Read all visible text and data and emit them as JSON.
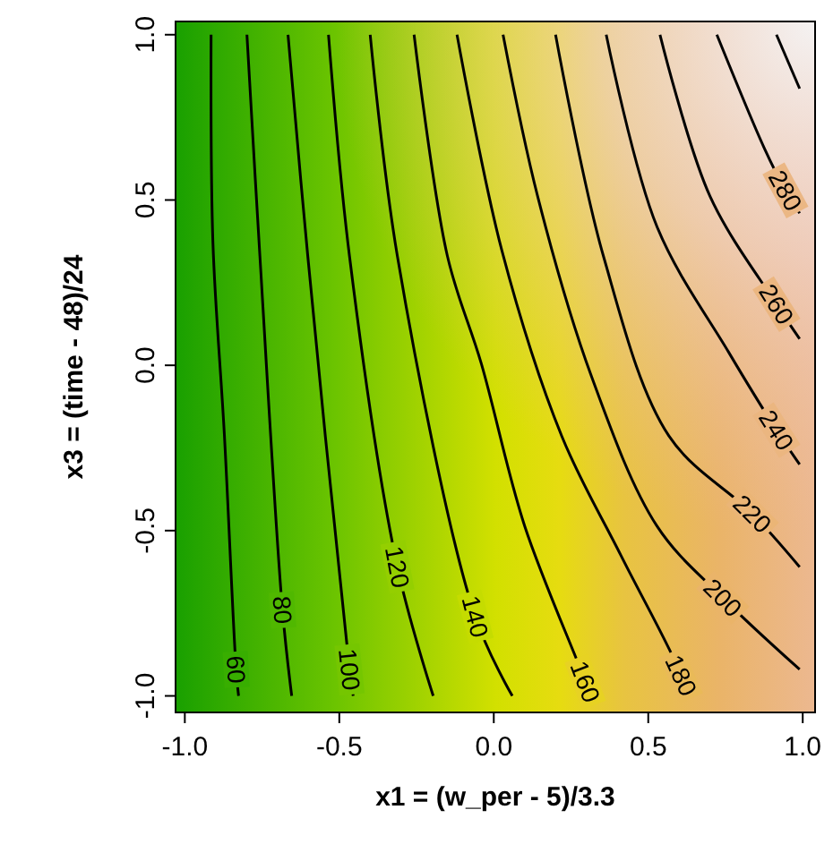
{
  "chart_data": {
    "type": "line",
    "xlabel": "x1 = (w_per - 5)/3.3",
    "ylabel": "x3 = (time - 48)/24",
    "xlim": [
      -1.03,
      1.04
    ],
    "ylim": [
      -1.05,
      1.04
    ],
    "xticks": [
      {
        "value": -1,
        "label": "-1.0"
      },
      {
        "value": -0.5,
        "label": "-0.5"
      },
      {
        "value": 0,
        "label": "0.0"
      },
      {
        "value": 0.5,
        "label": "0.5"
      },
      {
        "value": 1,
        "label": "1.0"
      }
    ],
    "yticks": [
      {
        "value": -1,
        "label": "-1.0"
      },
      {
        "value": -0.5,
        "label": "-0.5"
      },
      {
        "value": 0,
        "label": "0.0"
      },
      {
        "value": 0.5,
        "label": "0.5"
      },
      {
        "value": 1,
        "label": "1.0"
      }
    ],
    "series": [
      {
        "name": "60",
        "color": "#000000",
        "x": [
          -0.915,
          -0.909,
          -0.872,
          -0.834,
          -0.826
        ],
        "values": [
          1,
          0.37,
          -0.21,
          -0.92,
          -1
        ]
      },
      {
        "name": "80",
        "color": "#000000",
        "x": [
          -0.799,
          -0.757,
          -0.684,
          -0.654
        ],
        "values": [
          1,
          0.33,
          -0.74,
          -1
        ]
      },
      {
        "name": "100",
        "color": "#000000",
        "x": [
          -0.666,
          -0.602,
          -0.467,
          -0.455
        ],
        "values": [
          1,
          0.33,
          -0.92,
          -1
        ]
      },
      {
        "name": "120",
        "color": "#000000",
        "x": [
          -0.535,
          -0.467,
          -0.312,
          -0.196
        ],
        "values": [
          1,
          0.33,
          -0.61,
          -1
        ]
      },
      {
        "name": "140",
        "color": "#000000",
        "x": [
          -0.4,
          -0.312,
          -0.06,
          0.06
        ],
        "values": [
          1,
          0.33,
          -0.76,
          -1
        ]
      },
      {
        "name": "160",
        "color": "#000000",
        "x": [
          -0.258,
          -0.15,
          -0.04,
          0.1,
          0.296,
          0.31
        ],
        "values": [
          1,
          0.33,
          0.004,
          -0.486,
          -0.957,
          -1
        ]
      },
      {
        "name": "180",
        "color": "#000000",
        "x": [
          -0.119,
          0.026,
          0.22,
          0.412,
          0.606,
          0.62
        ],
        "values": [
          1,
          0.348,
          -0.214,
          -0.576,
          -0.938,
          -1
        ]
      },
      {
        "name": "200",
        "color": "#000000",
        "x": [
          0.03,
          0.142,
          0.316,
          0.528,
          0.741,
          0.99
        ],
        "values": [
          1,
          0.511,
          -0.033,
          -0.486,
          -0.703,
          -0.92
        ]
      },
      {
        "name": "220",
        "color": "#000000",
        "x": [
          0.2,
          0.355,
          0.567,
          0.837,
          0.99
        ],
        "values": [
          1,
          0.33,
          -0.214,
          -0.449,
          -0.61
        ]
      },
      {
        "name": "240",
        "color": "#000000",
        "x": [
          0.364,
          0.528,
          0.76,
          0.915,
          0.99
        ],
        "values": [
          1,
          0.42,
          0.04,
          -0.196,
          -0.3
        ]
      },
      {
        "name": "260",
        "color": "#000000",
        "x": [
          0.538,
          0.7,
          0.915,
          0.99
        ],
        "values": [
          1,
          0.511,
          0.185,
          0.08
        ]
      },
      {
        "name": "280",
        "color": "#000000",
        "x": [
          0.722,
          0.876,
          0.944,
          0.99
        ],
        "values": [
          1,
          0.656,
          0.529,
          0.46
        ]
      },
      {
        "color": "#000000",
        "x": [
          0.915,
          0.99
        ],
        "values": [
          1,
          0.837
        ]
      }
    ]
  }
}
